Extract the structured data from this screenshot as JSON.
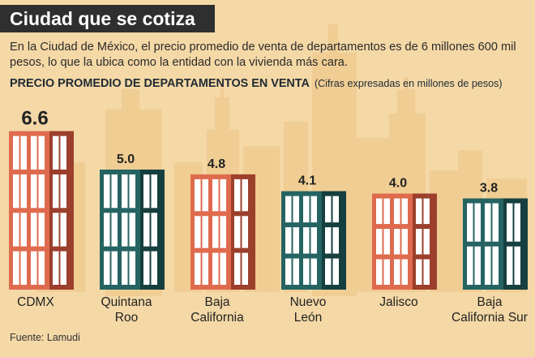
{
  "header": {
    "title": "Ciudad que se cotiza",
    "description": "En la Ciudad de México, el precio promedio de venta de departamentos es de 6 millones 600 mil pesos, lo que la ubica como la entidad con la vivienda más cara.",
    "subtitle": "PRECIO PROMEDIO DE DEPARTAMENTOS EN VENTA",
    "subtitle_note": "(Cifras expresadas en millones de pesos)"
  },
  "footer": {
    "source": "Fuente: Lamudi"
  },
  "colors": {
    "background": "#f4d8a6",
    "skyline": "#f0cd93",
    "orange_building": "#df6b4e",
    "orange_building_dark": "#9c3f2c",
    "teal_building": "#256462",
    "teal_building_dark": "#163f3f",
    "window": "#ffffff"
  },
  "chart_data": {
    "type": "bar",
    "title": "PRECIO PROMEDIO DE DEPARTAMENTOS EN VENTA",
    "ylabel": "(Cifras expresadas en millones de pesos)",
    "categories": [
      "CDMX",
      "Quintana Roo",
      "Baja California",
      "Nuevo León",
      "Jalisco",
      "Baja California Sur"
    ],
    "category_lines": [
      [
        "CDMX"
      ],
      [
        "Quintana",
        "Roo"
      ],
      [
        "Baja",
        "California"
      ],
      [
        "Nuevo",
        "León"
      ],
      [
        "Jalisco"
      ],
      [
        "Baja",
        "California Sur"
      ]
    ],
    "values": [
      6.6,
      5.0,
      4.8,
      4.1,
      4.0,
      3.8
    ],
    "value_labels": [
      "6.6",
      "5.0",
      "4.8",
      "4.1",
      "4.0",
      "3.8"
    ],
    "bar_colors": [
      "orange",
      "teal",
      "orange",
      "teal",
      "orange",
      "teal"
    ],
    "grid": false
  }
}
